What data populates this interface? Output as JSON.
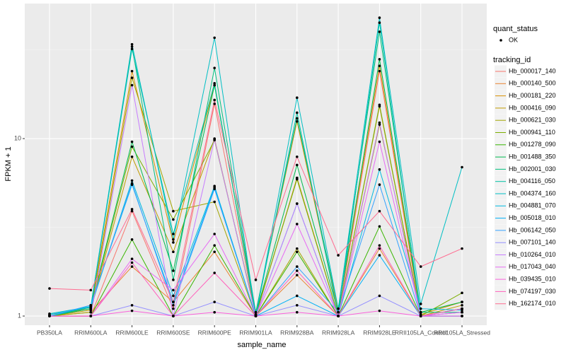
{
  "chart_data": {
    "type": "line",
    "x_label": "sample_name",
    "y_label": "FPKM + 1",
    "categories": [
      "PB350LA",
      "RRIM600LA",
      "RRIM600LE",
      "RRIM600SE",
      "RRIM600PE",
      "RRIM901LA",
      "RRIM928BA",
      "RRIM928LA",
      "RRIM928LE",
      "RRII105LA_Control",
      "RRII105LA_Stressed"
    ],
    "ylog": true,
    "grid": true,
    "ylim": [
      0.888,
      57.7
    ],
    "yticks": [
      1,
      10
    ],
    "shape_legend": {
      "title": "quant_status",
      "items": [
        "OK"
      ]
    },
    "color_legend_title": "tracking_id",
    "point_color": "#000000",
    "series": [
      {
        "name": "Hb_000017_140",
        "color": "#F8766D",
        "values": [
          1.0,
          1.0,
          3.9,
          1.1,
          15.7,
          1.0,
          6.0,
          1.0,
          24,
          1.0,
          1.05
        ]
      },
      {
        "name": "Hb_000140_500",
        "color": "#EA8331",
        "values": [
          1.0,
          1.05,
          1.9,
          1.2,
          2.3,
          1.0,
          1.7,
          1.0,
          2.4,
          1.0,
          1.1
        ]
      },
      {
        "name": "Hb_000181_220",
        "color": "#D89000",
        "values": [
          1.02,
          1.1,
          24,
          2.6,
          20,
          1.05,
          12.5,
          1.05,
          25.7,
          1.02,
          1.2
        ]
      },
      {
        "name": "Hb_000416_090",
        "color": "#C09B00",
        "values": [
          1.0,
          1.08,
          7.9,
          2.3,
          10,
          1.0,
          6.0,
          1.0,
          15.2,
          1.0,
          1.15
        ]
      },
      {
        "name": "Hb_000621_030",
        "color": "#A3A500",
        "values": [
          1.0,
          1.05,
          22,
          3.9,
          4.4,
          1.0,
          2.4,
          1.0,
          12,
          1.05,
          1.2
        ]
      },
      {
        "name": "Hb_000941_110",
        "color": "#7CAE00",
        "values": [
          1.0,
          1.1,
          9.0,
          3.5,
          9.8,
          1.02,
          5.9,
          1.0,
          15.5,
          1.0,
          1.35
        ]
      },
      {
        "name": "Hb_001278_090",
        "color": "#39B600",
        "values": [
          1.0,
          1.0,
          2.7,
          1.0,
          2.5,
          1.0,
          2.3,
          1.0,
          3.2,
          1.0,
          1.1
        ]
      },
      {
        "name": "Hb_001488_350",
        "color": "#00BB4E",
        "values": [
          1.0,
          1.12,
          9.6,
          1.8,
          20,
          1.02,
          7.1,
          1.05,
          28,
          1.05,
          1.2
        ]
      },
      {
        "name": "Hb_002001_030",
        "color": "#00BF7D",
        "values": [
          1.0,
          1.1,
          33,
          1.6,
          25,
          1.05,
          13,
          1.1,
          40,
          1.05,
          1.05
        ]
      },
      {
        "name": "Hb_004116_050",
        "color": "#00C1A3",
        "values": [
          1.0,
          1.13,
          32,
          2.9,
          20.5,
          1.0,
          14,
          1.0,
          45,
          1.0,
          1.0
        ]
      },
      {
        "name": "Hb_004374_160",
        "color": "#00BFC4",
        "values": [
          1.03,
          1.13,
          34,
          2.7,
          37,
          1.0,
          17,
          1.1,
          48,
          1.17,
          6.9
        ]
      },
      {
        "name": "Hb_004881_070",
        "color": "#00BAE0",
        "values": [
          1.02,
          1.12,
          5.8,
          1.3,
          5.4,
          1.0,
          4.3,
          1.0,
          6.7,
          1.1,
          1.08
        ]
      },
      {
        "name": "Hb_005018_010",
        "color": "#00B0F6",
        "values": [
          1.0,
          1.15,
          5.5,
          1.2,
          5.3,
          1.0,
          1.3,
          1.0,
          2.2,
          1.0,
          1.0
        ]
      },
      {
        "name": "Hb_006142_050",
        "color": "#35A2FF",
        "values": [
          1.0,
          1.15,
          5.6,
          1.15,
          5.2,
          1.0,
          1.9,
          1.05,
          5.5,
          1.0,
          1.0
        ]
      },
      {
        "name": "Hb_007101_140",
        "color": "#9590FF",
        "values": [
          1.0,
          1.0,
          1.15,
          1.0,
          1.2,
          1.0,
          1.15,
          1.0,
          1.3,
          1.0,
          1.05
        ]
      },
      {
        "name": "Hb_010264_010",
        "color": "#C77CFF",
        "values": [
          1.0,
          1.0,
          20,
          1.0,
          9.9,
          1.0,
          4.3,
          1.0,
          12.3,
          1.0,
          1.1
        ]
      },
      {
        "name": "Hb_017043_040",
        "color": "#E76BF3",
        "values": [
          1.0,
          1.0,
          2.1,
          1.4,
          2.9,
          1.0,
          3.3,
          1.0,
          9.6,
          1.0,
          1.05
        ]
      },
      {
        "name": "Hb_039435_010",
        "color": "#FA62DB",
        "values": [
          1.0,
          1.0,
          1.07,
          1.0,
          1.05,
          1.0,
          1.05,
          1.0,
          1.07,
          1.0,
          1.0
        ]
      },
      {
        "name": "Hb_074197_030",
        "color": "#FF62BC",
        "values": [
          1.0,
          1.0,
          2.0,
          1.0,
          1.75,
          1.0,
          1.8,
          1.0,
          2.5,
          1.0,
          1.1
        ]
      },
      {
        "name": "Hb_162174_010",
        "color": "#FF6C91",
        "values": [
          1.43,
          1.4,
          4.0,
          1.2,
          16.5,
          1.6,
          7.9,
          2.2,
          3.9,
          1.9,
          2.4
        ]
      }
    ]
  }
}
